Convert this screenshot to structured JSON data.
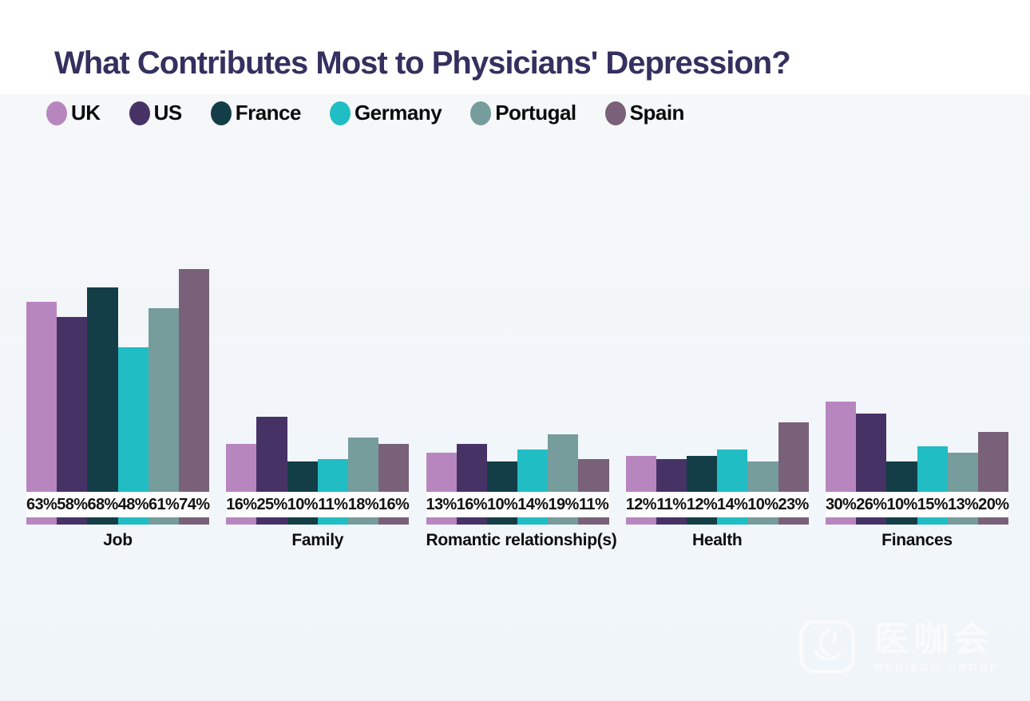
{
  "title": "What Contributes Most to Physicians' Depression?",
  "chart_data": {
    "type": "bar",
    "title": "What Contributes Most to Physicians' Depression?",
    "categories": [
      "Job",
      "Family",
      "Romantic relationship(s)",
      "Health",
      "Finances"
    ],
    "series": [
      {
        "name": "UK",
        "color": "#b886bf",
        "values": [
          63,
          16,
          13,
          12,
          30
        ]
      },
      {
        "name": "US",
        "color": "#473266",
        "values": [
          58,
          25,
          16,
          11,
          26
        ]
      },
      {
        "name": "France",
        "color": "#133e47",
        "values": [
          68,
          10,
          10,
          12,
          10
        ]
      },
      {
        "name": "Germany",
        "color": "#21bdc4",
        "values": [
          48,
          11,
          14,
          14,
          15
        ]
      },
      {
        "name": "Portugal",
        "color": "#769c9c",
        "values": [
          61,
          18,
          19,
          10,
          13
        ]
      },
      {
        "name": "Spain",
        "color": "#796179",
        "values": [
          74,
          16,
          11,
          23,
          20
        ]
      }
    ],
    "value_suffix": "%",
    "ylim": [
      0,
      100
    ],
    "grid": false,
    "legend_position": "top",
    "data_labels": true
  },
  "watermark": {
    "cjk_name": "医咖会",
    "group_name": "MEDIECO GROUP"
  },
  "colors": {
    "title_text": "#34305f",
    "label_text": "#0d0d0d",
    "top_background": "#ffffff",
    "chart_background": "#f1f6fa",
    "label_band": "#fdfdfe",
    "watermark": "#ffffff"
  }
}
